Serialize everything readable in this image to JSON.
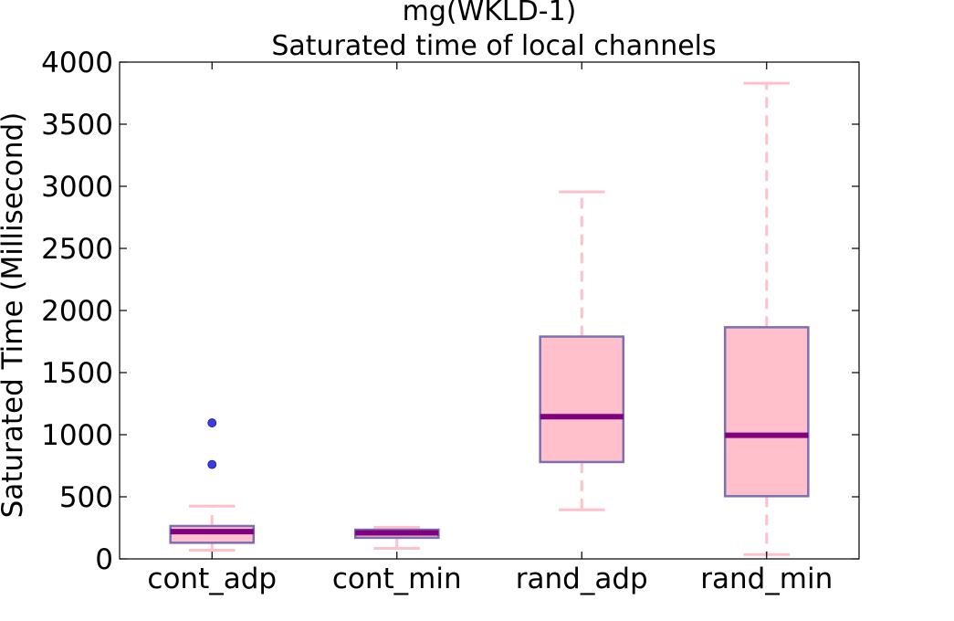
{
  "chart_data": {
    "type": "box",
    "title": "mg(WKLD-1)",
    "subtitle": "Saturated time of local channels",
    "xlabel": "",
    "ylabel": "Saturated Time (Millisecond)",
    "ylim": [
      0,
      4000
    ],
    "yticks": [
      0,
      500,
      1000,
      1500,
      2000,
      2500,
      3000,
      3500,
      4000
    ],
    "grid": false,
    "categories": [
      "cont_adp",
      "cont_min",
      "rand_adp",
      "rand_min"
    ],
    "boxes": [
      {
        "category": "cont_adp",
        "whisker_low": 70,
        "q1": 130,
        "median": 220,
        "q3": 265,
        "whisker_high": 425,
        "outliers": [
          760,
          1095
        ]
      },
      {
        "category": "cont_min",
        "whisker_low": 85,
        "q1": 170,
        "median": 210,
        "q3": 235,
        "whisker_high": 255,
        "outliers": []
      },
      {
        "category": "rand_adp",
        "whisker_low": 395,
        "q1": 780,
        "median": 1145,
        "q3": 1790,
        "whisker_high": 2955,
        "outliers": []
      },
      {
        "category": "rand_min",
        "whisker_low": 35,
        "q1": 505,
        "median": 995,
        "q3": 1865,
        "whisker_high": 3830,
        "outliers": []
      }
    ],
    "colors": {
      "box_fill": "#ffc0cb",
      "box_edge": "#7b6fb5",
      "median": "#800080",
      "whisker": "#ffc0cb",
      "outlier": "#3b3be6"
    }
  }
}
